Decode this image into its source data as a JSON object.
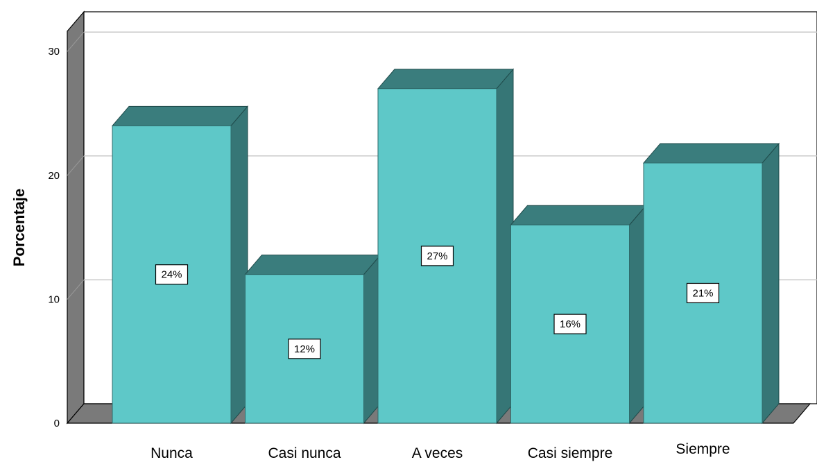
{
  "chart_data": {
    "type": "bar",
    "style": "3d",
    "categories": [
      "Nunca",
      "Casi nunca",
      "A veces",
      "Casi siempre",
      "Siempre"
    ],
    "values": [
      24,
      12,
      27,
      16,
      21
    ],
    "data_labels": [
      "24%",
      "12%",
      "27%",
      "16%",
      "21%"
    ],
    "ylabel": "Porcentaje",
    "xlabel": "",
    "ylim": [
      0,
      32
    ],
    "yticks": [
      0,
      10,
      20,
      30
    ],
    "ytick_labels": [
      "0",
      "10",
      "20",
      "30"
    ],
    "grid": true,
    "colors": {
      "bar_front": "#5ec8c8",
      "bar_top": "#3a7d7d",
      "bar_side": "#367676",
      "wall": "#7a7a7a",
      "gridline": "#c8c8c8"
    }
  }
}
